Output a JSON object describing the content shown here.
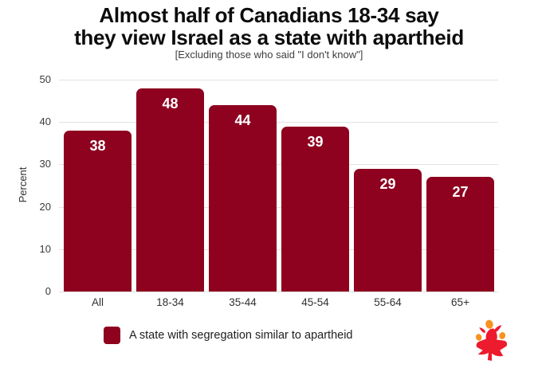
{
  "page": {
    "title_lines": [
      "Almost half of Canadians 18-34 say",
      "they view Israel as a state with apartheid"
    ],
    "subtitle": "[Excluding those who said \"I don't know\"]"
  },
  "legend": {
    "label": "A state with segregation similar to apartheid",
    "swatch_color": "#8E011F"
  },
  "logo": {
    "name": "maple-leaf-people-logo",
    "leaf_color": "#EC1B2D",
    "head_color": "#F6921E"
  },
  "chart_data": {
    "type": "bar",
    "title": "Almost half of Canadians 18-34 say they view Israel as a state with apartheid",
    "subtitle": "[Excluding those who said \"I don't know\"]",
    "categories": [
      "All",
      "18-34",
      "35-44",
      "45-54",
      "55-64",
      "65+"
    ],
    "values": [
      38,
      48,
      44,
      39,
      29,
      27
    ],
    "series_label": "A state with segregation similar to apartheid",
    "xlabel": "",
    "ylabel": "Percent",
    "ylim": [
      0,
      50
    ],
    "yticks": [
      0,
      10,
      20,
      30,
      40,
      50
    ],
    "grid": true,
    "legend_position": "bottom",
    "bar_color": "#8E011F",
    "value_label_color": "#FFFFFF",
    "gridline_color": "#E2E2E2"
  }
}
